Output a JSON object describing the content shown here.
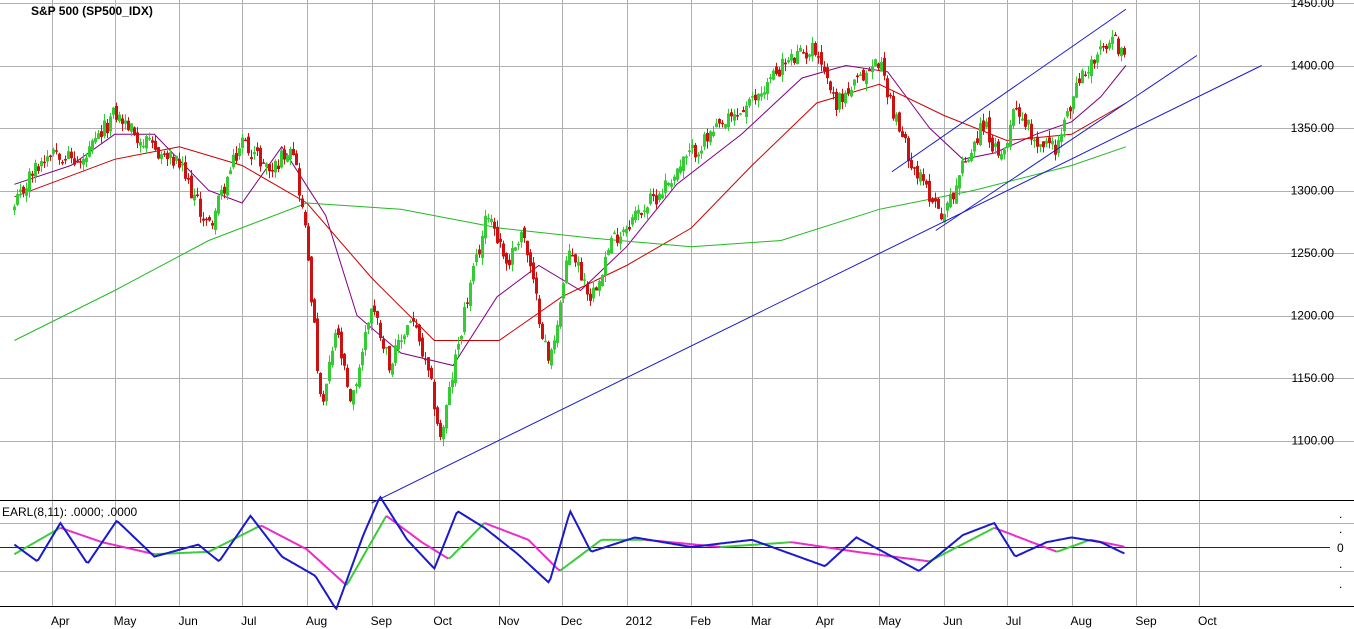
{
  "chart_data": [
    {
      "type": "candlestick",
      "title": "S&P 500 (SP500_IDX)",
      "colors": {
        "up": "#33cc33",
        "down": "#cc1111",
        "ma_short": "#800080",
        "ma_mid": "#cc0000",
        "ma_long": "#22bb22",
        "trendline": "#1a1acc",
        "grid": "#b0b0b0"
      },
      "grid": true,
      "y_axis": {
        "position": "right",
        "ylim": [
          1050,
          1450
        ],
        "tick_labels": [
          "1450.00",
          "1400.00",
          "1350.00",
          "1300.00",
          "1250.00",
          "1200.00",
          "1150.00",
          "1100.00"
        ]
      },
      "x_axis": {
        "tick_labels": [
          "Apr",
          "May",
          "Jun",
          "Jul",
          "Aug",
          "Sep",
          "Oct",
          "Nov",
          "Dec",
          "2012",
          "Feb",
          "Mar",
          "Apr",
          "May",
          "Jun",
          "Jul",
          "Aug",
          "Sep",
          "Oct"
        ]
      },
      "price_points": [
        {
          "date": "2011-03-14",
          "close": 1285
        },
        {
          "date": "2011-03-21",
          "close": 1310
        },
        {
          "date": "2011-04-01",
          "close": 1335
        },
        {
          "date": "2011-04-15",
          "close": 1320
        },
        {
          "date": "2011-05-01",
          "close": 1362
        },
        {
          "date": "2011-05-15",
          "close": 1338
        },
        {
          "date": "2011-06-01",
          "close": 1320
        },
        {
          "date": "2011-06-15",
          "close": 1270
        },
        {
          "date": "2011-07-01",
          "close": 1340
        },
        {
          "date": "2011-07-15",
          "close": 1315
        },
        {
          "date": "2011-07-25",
          "close": 1340
        },
        {
          "date": "2011-08-01",
          "close": 1260
        },
        {
          "date": "2011-08-08",
          "close": 1120
        },
        {
          "date": "2011-08-15",
          "close": 1190
        },
        {
          "date": "2011-08-22",
          "close": 1125
        },
        {
          "date": "2011-09-01",
          "close": 1210
        },
        {
          "date": "2011-09-10",
          "close": 1160
        },
        {
          "date": "2011-09-20",
          "close": 1200
        },
        {
          "date": "2011-09-30",
          "close": 1140
        },
        {
          "date": "2011-10-04",
          "close": 1100
        },
        {
          "date": "2011-10-15",
          "close": 1200
        },
        {
          "date": "2011-10-27",
          "close": 1285
        },
        {
          "date": "2011-11-05",
          "close": 1240
        },
        {
          "date": "2011-11-12",
          "close": 1270
        },
        {
          "date": "2011-11-25",
          "close": 1160
        },
        {
          "date": "2011-12-05",
          "close": 1255
        },
        {
          "date": "2011-12-15",
          "close": 1215
        },
        {
          "date": "2011-12-25",
          "close": 1260
        },
        {
          "date": "2012-01-05",
          "close": 1280
        },
        {
          "date": "2012-01-15",
          "close": 1295
        },
        {
          "date": "2012-02-01",
          "close": 1330
        },
        {
          "date": "2012-02-15",
          "close": 1350
        },
        {
          "date": "2012-03-01",
          "close": 1370
        },
        {
          "date": "2012-03-15",
          "close": 1400
        },
        {
          "date": "2012-04-01",
          "close": 1415
        },
        {
          "date": "2012-04-10",
          "close": 1370
        },
        {
          "date": "2012-04-20",
          "close": 1385
        },
        {
          "date": "2012-05-01",
          "close": 1405
        },
        {
          "date": "2012-05-10",
          "close": 1350
        },
        {
          "date": "2012-05-20",
          "close": 1310
        },
        {
          "date": "2012-06-01",
          "close": 1280
        },
        {
          "date": "2012-06-10",
          "close": 1320
        },
        {
          "date": "2012-06-20",
          "close": 1355
        },
        {
          "date": "2012-06-28",
          "close": 1320
        },
        {
          "date": "2012-07-05",
          "close": 1370
        },
        {
          "date": "2012-07-15",
          "close": 1340
        },
        {
          "date": "2012-07-25",
          "close": 1335
        },
        {
          "date": "2012-08-05",
          "close": 1390
        },
        {
          "date": "2012-08-15",
          "close": 1410
        },
        {
          "date": "2012-08-22",
          "close": 1420
        },
        {
          "date": "2012-08-27",
          "close": 1405
        }
      ],
      "moving_averages": [
        {
          "color": "#800080",
          "points": [
            {
              "date": "2011-03-14",
              "value": 1305
            },
            {
              "date": "2011-04-10",
              "value": 1320
            },
            {
              "date": "2011-05-01",
              "value": 1345
            },
            {
              "date": "2011-05-20",
              "value": 1345
            },
            {
              "date": "2011-06-15",
              "value": 1300
            },
            {
              "date": "2011-07-01",
              "value": 1290
            },
            {
              "date": "2011-07-20",
              "value": 1335
            },
            {
              "date": "2011-08-10",
              "value": 1280
            },
            {
              "date": "2011-08-25",
              "value": 1200
            },
            {
              "date": "2011-09-15",
              "value": 1170
            },
            {
              "date": "2011-10-10",
              "value": 1160
            },
            {
              "date": "2011-10-31",
              "value": 1215
            },
            {
              "date": "2011-11-20",
              "value": 1240
            },
            {
              "date": "2011-12-10",
              "value": 1220
            },
            {
              "date": "2012-01-01",
              "value": 1255
            },
            {
              "date": "2012-01-25",
              "value": 1305
            },
            {
              "date": "2012-02-25",
              "value": 1345
            },
            {
              "date": "2012-03-25",
              "value": 1390
            },
            {
              "date": "2012-04-15",
              "value": 1400
            },
            {
              "date": "2012-05-05",
              "value": 1395
            },
            {
              "date": "2012-05-25",
              "value": 1350
            },
            {
              "date": "2012-06-10",
              "value": 1325
            },
            {
              "date": "2012-06-25",
              "value": 1330
            },
            {
              "date": "2012-07-15",
              "value": 1345
            },
            {
              "date": "2012-08-01",
              "value": 1355
            },
            {
              "date": "2012-08-15",
              "value": 1375
            },
            {
              "date": "2012-08-27",
              "value": 1400
            }
          ]
        },
        {
          "color": "#cc0000",
          "points": [
            {
              "date": "2011-03-14",
              "value": 1295
            },
            {
              "date": "2011-05-01",
              "value": 1325
            },
            {
              "date": "2011-06-01",
              "value": 1335
            },
            {
              "date": "2011-07-01",
              "value": 1320
            },
            {
              "date": "2011-08-01",
              "value": 1290
            },
            {
              "date": "2011-09-01",
              "value": 1230
            },
            {
              "date": "2011-10-01",
              "value": 1180
            },
            {
              "date": "2011-11-01",
              "value": 1180
            },
            {
              "date": "2011-12-01",
              "value": 1215
            },
            {
              "date": "2012-01-01",
              "value": 1240
            },
            {
              "date": "2012-02-01",
              "value": 1270
            },
            {
              "date": "2012-03-01",
              "value": 1320
            },
            {
              "date": "2012-04-01",
              "value": 1370
            },
            {
              "date": "2012-05-01",
              "value": 1385
            },
            {
              "date": "2012-06-01",
              "value": 1360
            },
            {
              "date": "2012-07-01",
              "value": 1340
            },
            {
              "date": "2012-08-01",
              "value": 1345
            },
            {
              "date": "2012-08-27",
              "value": 1370
            }
          ]
        },
        {
          "color": "#22bb22",
          "points": [
            {
              "date": "2011-03-14",
              "value": 1180
            },
            {
              "date": "2011-05-01",
              "value": 1220
            },
            {
              "date": "2011-06-15",
              "value": 1260
            },
            {
              "date": "2011-08-01",
              "value": 1290
            },
            {
              "date": "2011-09-15",
              "value": 1285
            },
            {
              "date": "2011-11-01",
              "value": 1270
            },
            {
              "date": "2011-12-15",
              "value": 1262
            },
            {
              "date": "2012-02-01",
              "value": 1255
            },
            {
              "date": "2012-03-15",
              "value": 1260
            },
            {
              "date": "2012-05-01",
              "value": 1285
            },
            {
              "date": "2012-06-15",
              "value": 1300
            },
            {
              "date": "2012-08-01",
              "value": 1320
            },
            {
              "date": "2012-08-27",
              "value": 1335
            }
          ]
        }
      ],
      "trendlines": [
        {
          "from": {
            "date": "2011-09-01",
            "value": 1050
          },
          "to": {
            "date": "2012-10-31",
            "value": 1400
          }
        },
        {
          "from": {
            "date": "2012-05-07",
            "value": 1315
          },
          "to": {
            "date": "2012-08-27",
            "value": 1445
          }
        },
        {
          "from": {
            "date": "2012-05-28",
            "value": 1268
          },
          "to": {
            "date": "2012-09-30",
            "value": 1408
          }
        }
      ]
    },
    {
      "type": "line",
      "title": "EARL(8,11): .0000; .0000",
      "zero_label": "0",
      "side_marks": [
        ".",
        ".",
        ".",
        "."
      ],
      "colors": {
        "fast": "#1a1acc",
        "slow_up": "#33cc33",
        "slow_down": "#ee22cc"
      },
      "series": [
        {
          "values": [
            {
              "date": "2011-03-14",
              "value": 0.1
            },
            {
              "date": "2011-03-25",
              "value": -0.6
            },
            {
              "date": "2011-04-05",
              "value": 1.0
            },
            {
              "date": "2011-04-18",
              "value": -0.7
            },
            {
              "date": "2011-05-02",
              "value": 1.1
            },
            {
              "date": "2011-05-20",
              "value": -0.4
            },
            {
              "date": "2011-06-10",
              "value": 0.1
            },
            {
              "date": "2011-06-20",
              "value": -0.6
            },
            {
              "date": "2011-07-05",
              "value": 1.3
            },
            {
              "date": "2011-07-20",
              "value": -0.4
            },
            {
              "date": "2011-08-05",
              "value": -1.2
            },
            {
              "date": "2011-08-15",
              "value": -2.6
            },
            {
              "date": "2011-08-28",
              "value": 0.5
            },
            {
              "date": "2011-09-05",
              "value": 2.1
            },
            {
              "date": "2011-09-18",
              "value": 0.3
            },
            {
              "date": "2011-10-01",
              "value": -0.9
            },
            {
              "date": "2011-10-12",
              "value": 1.5
            },
            {
              "date": "2011-10-25",
              "value": 0.8
            },
            {
              "date": "2011-11-10",
              "value": -0.3
            },
            {
              "date": "2011-11-25",
              "value": -1.5
            },
            {
              "date": "2011-12-05",
              "value": 1.5
            },
            {
              "date": "2011-12-15",
              "value": -0.2
            },
            {
              "date": "2012-01-05",
              "value": 0.4
            },
            {
              "date": "2012-02-01",
              "value": 0.0
            },
            {
              "date": "2012-03-01",
              "value": 0.3
            },
            {
              "date": "2012-04-05",
              "value": -0.8
            },
            {
              "date": "2012-04-20",
              "value": 0.4
            },
            {
              "date": "2012-05-20",
              "value": -1.0
            },
            {
              "date": "2012-06-10",
              "value": 0.5
            },
            {
              "date": "2012-06-25",
              "value": 1.0
            },
            {
              "date": "2012-07-05",
              "value": -0.4
            },
            {
              "date": "2012-07-20",
              "value": 0.2
            },
            {
              "date": "2012-08-01",
              "value": 0.4
            },
            {
              "date": "2012-08-15",
              "value": 0.2
            },
            {
              "date": "2012-08-27",
              "value": -0.3
            }
          ]
        },
        {
          "values": [
            {
              "date": "2011-03-14",
              "value": -0.3
            },
            {
              "date": "2011-04-05",
              "value": 0.8
            },
            {
              "date": "2011-04-25",
              "value": 0.2
            },
            {
              "date": "2011-05-20",
              "value": -0.3
            },
            {
              "date": "2011-06-15",
              "value": -0.2
            },
            {
              "date": "2011-07-10",
              "value": 0.9
            },
            {
              "date": "2011-08-01",
              "value": -0.1
            },
            {
              "date": "2011-08-20",
              "value": -1.6
            },
            {
              "date": "2011-09-08",
              "value": 1.3
            },
            {
              "date": "2011-09-25",
              "value": 0.2
            },
            {
              "date": "2011-10-08",
              "value": -0.5
            },
            {
              "date": "2011-10-25",
              "value": 1.0
            },
            {
              "date": "2011-11-15",
              "value": 0.3
            },
            {
              "date": "2011-11-30",
              "value": -1.0
            },
            {
              "date": "2011-12-20",
              "value": 0.3
            },
            {
              "date": "2012-01-10",
              "value": 0.3
            },
            {
              "date": "2012-02-15",
              "value": 0.0
            },
            {
              "date": "2012-03-20",
              "value": 0.2
            },
            {
              "date": "2012-04-20",
              "value": -0.2
            },
            {
              "date": "2012-05-25",
              "value": -0.6
            },
            {
              "date": "2012-06-25",
              "value": 0.8
            },
            {
              "date": "2012-07-10",
              "value": 0.3
            },
            {
              "date": "2012-07-25",
              "value": -0.2
            },
            {
              "date": "2012-08-10",
              "value": 0.3
            },
            {
              "date": "2012-08-27",
              "value": 0.0
            }
          ]
        }
      ]
    }
  ]
}
